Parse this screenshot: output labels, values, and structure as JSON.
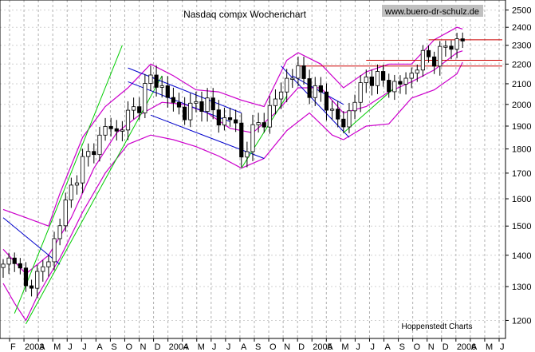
{
  "chart_data": {
    "type": "candlestick",
    "title": "Nasdaq compx Wochenchart",
    "watermark": "www.buero-dr-schulz.de",
    "credit": "Hoppenstedt Charts",
    "y_scale": "log",
    "ylim": [
      1150,
      2560
    ],
    "y_ticks": [
      1200,
      1300,
      1400,
      1500,
      1600,
      1700,
      1800,
      1900,
      2000,
      2100,
      2200,
      2300,
      2400,
      2500
    ],
    "x_tick_labels": [
      "F",
      "2003",
      "A",
      "M",
      "J",
      "J",
      "A",
      "S",
      "O",
      "N",
      "D",
      "2004",
      "A",
      "M",
      "J",
      "J",
      "A",
      "S",
      "O",
      "N",
      "D",
      "2005",
      "A",
      "M",
      "J",
      "J",
      "A",
      "S",
      "O",
      "N",
      "D",
      "2006",
      "A",
      "M",
      "J"
    ],
    "grid": true,
    "close_path": [
      [
        0,
        1360
      ],
      [
        2,
        1400
      ],
      [
        4,
        1290
      ],
      [
        6,
        1340
      ],
      [
        8,
        1380
      ],
      [
        10,
        1520
      ],
      [
        12,
        1640
      ],
      [
        14,
        1750
      ],
      [
        16,
        1800
      ],
      [
        18,
        1900
      ],
      [
        20,
        1870
      ],
      [
        22,
        1950
      ],
      [
        24,
        2000
      ],
      [
        25,
        2080
      ],
      [
        26,
        2130
      ],
      [
        28,
        2080
      ],
      [
        30,
        2000
      ],
      [
        32,
        1960
      ],
      [
        34,
        2000
      ],
      [
        36,
        2010
      ],
      [
        38,
        1920
      ],
      [
        40,
        1940
      ],
      [
        41,
        1900
      ],
      [
        42,
        1760
      ],
      [
        44,
        1880
      ],
      [
        46,
        1930
      ],
      [
        48,
        2020
      ],
      [
        50,
        2120
      ],
      [
        52,
        2170
      ],
      [
        54,
        2070
      ],
      [
        56,
        2050
      ],
      [
        58,
        1960
      ],
      [
        60,
        1900
      ],
      [
        62,
        2030
      ],
      [
        64,
        2130
      ],
      [
        66,
        2130
      ],
      [
        68,
        2090
      ],
      [
        70,
        2100
      ],
      [
        72,
        2150
      ],
      [
        74,
        2240
      ],
      [
        76,
        2230
      ],
      [
        78,
        2290
      ],
      [
        80,
        2320
      ],
      [
        81,
        2330
      ]
    ],
    "bollinger_upper": [
      [
        0,
        1560
      ],
      [
        4,
        1530
      ],
      [
        8,
        1500
      ],
      [
        10,
        1620
      ],
      [
        14,
        1850
      ],
      [
        18,
        1990
      ],
      [
        22,
        2080
      ],
      [
        26,
        2200
      ],
      [
        30,
        2140
      ],
      [
        34,
        2070
      ],
      [
        38,
        2060
      ],
      [
        42,
        2020
      ],
      [
        46,
        1990
      ],
      [
        50,
        2220
      ],
      [
        52,
        2260
      ],
      [
        56,
        2200
      ],
      [
        60,
        2080
      ],
      [
        64,
        2160
      ],
      [
        68,
        2200
      ],
      [
        72,
        2200
      ],
      [
        76,
        2330
      ],
      [
        80,
        2400
      ],
      [
        81,
        2390
      ]
    ],
    "bollinger_lower": [
      [
        0,
        1310
      ],
      [
        2,
        1250
      ],
      [
        4,
        1200
      ],
      [
        6,
        1270
      ],
      [
        8,
        1330
      ],
      [
        10,
        1390
      ],
      [
        14,
        1550
      ],
      [
        18,
        1700
      ],
      [
        22,
        1820
      ],
      [
        26,
        1860
      ],
      [
        30,
        1840
      ],
      [
        34,
        1810
      ],
      [
        38,
        1770
      ],
      [
        42,
        1720
      ],
      [
        46,
        1760
      ],
      [
        50,
        1880
      ],
      [
        54,
        1960
      ],
      [
        58,
        1860
      ],
      [
        60,
        1840
      ],
      [
        64,
        1900
      ],
      [
        68,
        1910
      ],
      [
        72,
        2030
      ],
      [
        76,
        2070
      ],
      [
        80,
        2150
      ],
      [
        81,
        2210
      ]
    ],
    "moving_average": [
      [
        0,
        1420
      ],
      [
        4,
        1340
      ],
      [
        8,
        1400
      ],
      [
        12,
        1530
      ],
      [
        16,
        1720
      ],
      [
        20,
        1870
      ],
      [
        24,
        1950
      ],
      [
        28,
        2010
      ],
      [
        32,
        2000
      ],
      [
        36,
        1960
      ],
      [
        40,
        1890
      ],
      [
        44,
        1870
      ],
      [
        48,
        1960
      ],
      [
        52,
        2080
      ],
      [
        56,
        2080
      ],
      [
        60,
        1960
      ],
      [
        64,
        1990
      ],
      [
        68,
        2060
      ],
      [
        72,
        2110
      ],
      [
        76,
        2170
      ],
      [
        80,
        2260
      ],
      [
        81,
        2270
      ]
    ],
    "trendlines": [
      {
        "color": "#00cc00",
        "from": [
          2,
          1220
        ],
        "to": [
          21,
          2300
        ]
      },
      {
        "color": "#00cc00",
        "from": [
          4,
          1190
        ],
        "to": [
          28,
          2140
        ]
      },
      {
        "color": "#0000cc",
        "from": [
          22,
          2180
        ],
        "to": [
          42,
          1960
        ]
      },
      {
        "color": "#0000cc",
        "from": [
          22,
          2110
        ],
        "to": [
          40,
          1920
        ]
      },
      {
        "color": "#0000cc",
        "from": [
          0,
          1530
        ],
        "to": [
          10,
          1370
        ]
      },
      {
        "color": "#0000cc",
        "from": [
          26,
          1950
        ],
        "to": [
          46,
          1760
        ]
      },
      {
        "color": "#00cc00",
        "from": [
          42,
          1720
        ],
        "to": [
          50,
          2040
        ]
      },
      {
        "color": "#0000cc",
        "from": [
          49,
          2190
        ],
        "to": [
          61,
          1850
        ]
      },
      {
        "color": "#0000cc",
        "from": [
          51,
          2140
        ],
        "to": [
          60,
          2000
        ]
      },
      {
        "color": "#00cc00",
        "from": [
          60,
          1870
        ],
        "to": [
          69,
          2080
        ]
      },
      {
        "color": "#cc0000",
        "from": [
          52,
          2190
        ],
        "to": [
          88,
          2190
        ]
      },
      {
        "color": "#cc0000",
        "from": [
          64,
          2220
        ],
        "to": [
          88,
          2220
        ]
      },
      {
        "color": "#cc0000",
        "from": [
          75,
          2330
        ],
        "to": [
          88,
          2330
        ]
      }
    ]
  }
}
